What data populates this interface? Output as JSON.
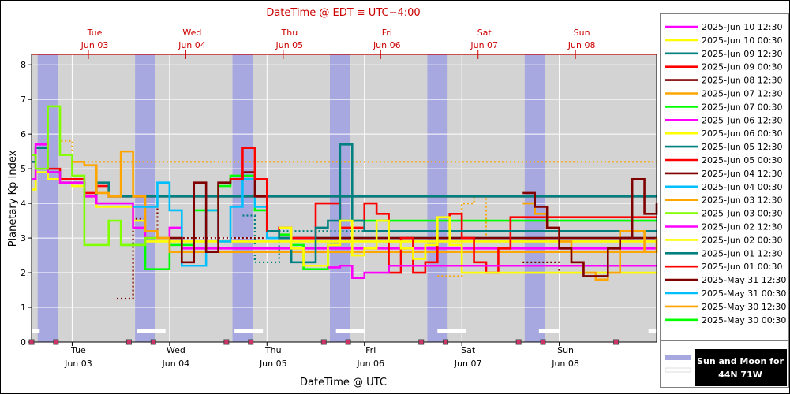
{
  "chart_data": {
    "type": "line",
    "title": "DateTime @ EDT ≡ UTC−4:00",
    "xlabel": "DateTime @ UTC",
    "ylabel": "Planetary Kp Index",
    "ylim": [
      0,
      8.3
    ],
    "xlim": [
      "2025-06-02 14:00",
      "2025-06-09 00:00"
    ],
    "y_ticks": [
      0,
      1,
      2,
      3,
      4,
      5,
      6,
      7,
      8
    ],
    "x_ticks_bottom": [
      {
        "day": "Tue",
        "date": "Jun 03",
        "at": "2025-06-03 00:00"
      },
      {
        "day": "Wed",
        "date": "Jun 04",
        "at": "2025-06-04 00:00"
      },
      {
        "day": "Thu",
        "date": "Jun 05",
        "at": "2025-06-05 00:00"
      },
      {
        "day": "Fri",
        "date": "Jun 06",
        "at": "2025-06-06 00:00"
      },
      {
        "day": "Sat",
        "date": "Jun 07",
        "at": "2025-06-07 00:00"
      },
      {
        "day": "Sun",
        "date": "Jun 08",
        "at": "2025-06-08 00:00"
      }
    ],
    "x_ticks_top": [
      {
        "day": "Tue",
        "date": "Jun 03",
        "at": "2025-06-03 04:00"
      },
      {
        "day": "Wed",
        "date": "Jun 04",
        "at": "2025-06-04 04:00"
      },
      {
        "day": "Thu",
        "date": "Jun 05",
        "at": "2025-06-05 04:00"
      },
      {
        "day": "Fri",
        "date": "Jun 06",
        "at": "2025-06-06 04:00"
      },
      {
        "day": "Sat",
        "date": "Jun 07",
        "at": "2025-06-07 04:00"
      },
      {
        "day": "Sun",
        "date": "Jun 08",
        "at": "2025-06-08 04:00"
      }
    ],
    "grid": true,
    "legend_position": "right",
    "sun_moon_label": "Sun and Moon for\n44N 71W",
    "sun_bands": [
      {
        "start": "2025-06-02 15:30",
        "end": "2025-06-02 20:30"
      },
      {
        "start": "2025-06-03 15:30",
        "end": "2025-06-03 20:30"
      },
      {
        "start": "2025-06-04 15:30",
        "end": "2025-06-04 20:30"
      },
      {
        "start": "2025-06-05 15:30",
        "end": "2025-06-05 20:30"
      },
      {
        "start": "2025-06-06 15:30",
        "end": "2025-06-06 20:30"
      },
      {
        "start": "2025-06-07 15:30",
        "end": "2025-06-07 20:30"
      }
    ],
    "moon_bars": [
      {
        "start": "2025-06-02 14:00",
        "end": "2025-06-02 16:00"
      },
      {
        "start": "2025-06-03 16:00",
        "end": "2025-06-03 23:00"
      },
      {
        "start": "2025-06-04 16:00",
        "end": "2025-06-04 23:00"
      },
      {
        "start": "2025-06-05 17:00",
        "end": "2025-06-06 00:00"
      },
      {
        "start": "2025-06-06 18:00",
        "end": "2025-06-07 01:00"
      },
      {
        "start": "2025-06-07 19:00",
        "end": "2025-06-08 00:00"
      },
      {
        "start": "2025-06-08 22:00",
        "end": "2025-06-09 00:00"
      }
    ],
    "sun_markers": [
      "2025-06-02 14:00",
      "2025-06-02 20:00",
      "2025-06-03 14:00",
      "2025-06-03 20:00",
      "2025-06-04 14:00",
      "2025-06-04 20:00",
      "2025-06-05 14:00",
      "2025-06-05 20:00",
      "2025-06-06 14:00",
      "2025-06-06 20:00",
      "2025-06-07 14:00",
      "2025-06-07 20:00",
      "2025-06-08 14:00"
    ],
    "series": [
      {
        "name": "2025-Jun 10 12:30",
        "color": "#ff00ff",
        "dash": false
      },
      {
        "name": "2025-Jun 10 00:30",
        "color": "#ffff00",
        "dash": false
      },
      {
        "name": "2025-Jun 09 12:30",
        "color": "#008080",
        "dash": false
      },
      {
        "name": "2025-Jun 09 00:30",
        "color": "#ff0000",
        "dash": false
      },
      {
        "name": "2025-Jun 08 12:30",
        "color": "#800000",
        "dash": false,
        "x": [
          "2025-06-07 15:00",
          "2025-06-07 18:00",
          "2025-06-07 21:00",
          "2025-06-08 00:00",
          "2025-06-08 03:00",
          "2025-06-08 06:00",
          "2025-06-08 09:00",
          "2025-06-08 12:00",
          "2025-06-08 15:00",
          "2025-06-08 18:00",
          "2025-06-08 21:00",
          "2025-06-09 00:00"
        ],
        "y": [
          4.3,
          3.9,
          3.3,
          2.7,
          2.3,
          1.9,
          1.9,
          2.7,
          3.0,
          4.7,
          3.7,
          4.0
        ]
      },
      {
        "name": "2025-Jun 07 12:30",
        "color": "#ffa500",
        "dash": false,
        "x": [
          "2025-06-07 15:00",
          "2025-06-07 18:00",
          "2025-06-07 21:00",
          "2025-06-08 00:00",
          "2025-06-08 03:00",
          "2025-06-08 06:00",
          "2025-06-08 09:00",
          "2025-06-08 12:00",
          "2025-06-08 15:00",
          "2025-06-08 18:00",
          "2025-06-08 21:00",
          "2025-06-09 00:00"
        ],
        "y": [
          4.0,
          3.7,
          3.3,
          2.9,
          2.3,
          2.0,
          1.8,
          2.0,
          3.2,
          3.2,
          2.6,
          3.0
        ]
      },
      {
        "name": "2025-Jun 07 00:30",
        "color": "#00ff00",
        "dash": false
      },
      {
        "name": "2025-Jun 06 12:30",
        "color": "#ff00ff",
        "dash": false,
        "x": [
          "2025-06-05 15:00",
          "2025-06-05 18:00",
          "2025-06-05 21:00",
          "2025-06-06 00:00",
          "2025-06-06 03:00",
          "2025-06-06 06:00",
          "2025-06-06 09:00"
        ],
        "y": [
          2.15,
          2.2,
          1.85,
          2.0,
          2.0,
          2.2,
          2.2
        ]
      },
      {
        "name": "2025-Jun 06 00:30",
        "color": "#ffff00",
        "dash": false,
        "x": [
          "2025-06-05 03:00",
          "2025-06-05 06:00",
          "2025-06-05 09:00",
          "2025-06-05 12:00",
          "2025-06-05 15:00",
          "2025-06-05 18:00",
          "2025-06-05 21:00",
          "2025-06-06 00:00",
          "2025-06-06 03:00",
          "2025-06-06 06:00",
          "2025-06-06 09:00",
          "2025-06-06 12:00",
          "2025-06-06 15:00",
          "2025-06-06 18:00",
          "2025-06-06 21:00",
          "2025-06-07 00:00"
        ],
        "y": [
          3.3,
          2.7,
          2.2,
          2.2,
          2.8,
          3.5,
          2.5,
          2.7,
          3.5,
          2.9,
          2.7,
          2.4,
          2.8,
          3.6,
          2.8,
          2.0
        ]
      },
      {
        "name": "2025-Jun 05 12:30",
        "color": "#008080",
        "dash": false,
        "x": [
          "2025-06-05 00:00",
          "2025-06-05 03:00",
          "2025-06-05 06:00",
          "2025-06-05 09:00",
          "2025-06-05 12:00",
          "2025-06-05 15:00",
          "2025-06-05 18:00",
          "2025-06-05 21:00",
          "2025-06-06 00:00"
        ],
        "y": [
          3.2,
          3.0,
          2.3,
          2.3,
          3.3,
          3.5,
          5.7,
          3.5,
          3.2
        ]
      },
      {
        "name": "2025-Jun 05 00:30",
        "color": "#ff0000",
        "dash": false,
        "x": [
          "2025-06-04 15:00",
          "2025-06-04 18:00",
          "2025-06-04 21:00",
          "2025-06-05 00:00",
          "2025-06-05 03:00",
          "2025-06-05 06:00",
          "2025-06-05 09:00",
          "2025-06-05 12:00",
          "2025-06-05 15:00",
          "2025-06-05 18:00",
          "2025-06-05 21:00",
          "2025-06-06 00:00",
          "2025-06-06 03:00",
          "2025-06-06 06:00",
          "2025-06-06 09:00",
          "2025-06-06 12:00",
          "2025-06-06 15:00",
          "2025-06-06 18:00",
          "2025-06-06 21:00",
          "2025-06-07 00:00",
          "2025-06-07 03:00",
          "2025-06-07 06:00",
          "2025-06-07 09:00",
          "2025-06-07 12:00"
        ],
        "y": [
          4.7,
          5.6,
          4.7,
          3.2,
          3.3,
          3.0,
          3.0,
          4.0,
          4.0,
          3.3,
          3.3,
          4.0,
          3.7,
          2.0,
          3.0,
          2.0,
          2.3,
          3.2,
          3.7,
          3.0,
          2.3,
          2.0,
          2.7,
          3.6
        ]
      },
      {
        "name": "2025-Jun 04 12:30",
        "color": "#800000",
        "dash": false,
        "x": [
          "2025-06-04 00:00",
          "2025-06-04 03:00",
          "2025-06-04 06:00",
          "2025-06-04 09:00",
          "2025-06-04 12:00",
          "2025-06-04 15:00",
          "2025-06-04 18:00",
          "2025-06-04 21:00",
          "2025-06-05 00:00",
          "2025-06-05 03:00"
        ],
        "y": [
          3.0,
          2.3,
          4.6,
          2.6,
          4.6,
          4.7,
          4.9,
          4.2,
          3.2,
          3.0
        ]
      },
      {
        "name": "2025-Jun 04 00:30",
        "color": "#00bfff",
        "dash": false,
        "x": [
          "2025-06-03 15:00",
          "2025-06-03 18:00",
          "2025-06-03 21:00",
          "2025-06-04 00:00",
          "2025-06-04 03:00",
          "2025-06-04 06:00",
          "2025-06-04 09:00",
          "2025-06-04 12:00",
          "2025-06-04 15:00",
          "2025-06-04 18:00",
          "2025-06-04 21:00",
          "2025-06-05 00:00"
        ],
        "y": [
          3.9,
          3.9,
          4.6,
          3.8,
          2.2,
          2.2,
          3.8,
          2.9,
          3.9,
          4.7,
          3.9,
          3.0
        ]
      },
      {
        "name": "2025-Jun 03 12:30",
        "color": "#ffa500",
        "dash": false,
        "x": [
          "2025-06-03 00:00",
          "2025-06-03 03:00",
          "2025-06-03 06:00",
          "2025-06-03 09:00",
          "2025-06-03 12:00",
          "2025-06-03 15:00",
          "2025-06-03 18:00",
          "2025-06-03 21:00",
          "2025-06-04 00:00"
        ],
        "y": [
          5.2,
          5.1,
          4.3,
          4.2,
          5.5,
          4.2,
          3.2,
          3.0,
          2.6
        ]
      },
      {
        "name": "2025-Jun 03 00:30",
        "color": "#80ff00",
        "dash": false,
        "x": [
          "2025-06-02 14:00",
          "2025-06-02 15:00",
          "2025-06-02 18:00",
          "2025-06-02 21:00",
          "2025-06-03 00:00",
          "2025-06-03 03:00",
          "2025-06-03 06:00",
          "2025-06-03 09:00",
          "2025-06-03 12:00",
          "2025-06-03 15:00",
          "2025-06-03 18:00",
          "2025-06-03 21:00",
          "2025-06-04 00:00"
        ],
        "y": [
          5.4,
          5.0,
          6.8,
          5.4,
          4.8,
          2.8,
          2.8,
          3.5,
          2.8,
          2.8,
          3.0,
          3.0,
          2.6
        ]
      },
      {
        "name": "2025-Jun 02 12:30",
        "color": "#ff00ff",
        "dash": false,
        "x": [
          "2025-06-02 14:00",
          "2025-06-02 15:00",
          "2025-06-02 18:00",
          "2025-06-02 21:00",
          "2025-06-03 00:00",
          "2025-06-03 03:00",
          "2025-06-03 06:00",
          "2025-06-03 09:00",
          "2025-06-03 12:00",
          "2025-06-03 15:00",
          "2025-06-03 18:00",
          "2025-06-03 21:00",
          "2025-06-04 00:00",
          "2025-06-04 03:00"
        ],
        "y": [
          4.7,
          5.7,
          4.9,
          4.6,
          4.6,
          4.2,
          4.0,
          4.0,
          4.0,
          3.3,
          3.0,
          3.0,
          3.3,
          2.7
        ]
      },
      {
        "name": "2025-Jun 02 00:30",
        "color": "#ffff00",
        "dash": false,
        "x": [
          "2025-06-02 14:00",
          "2025-06-02 15:00",
          "2025-06-02 18:00",
          "2025-06-02 21:00",
          "2025-06-03 00:00",
          "2025-06-03 03:00",
          "2025-06-03 06:00",
          "2025-06-03 09:00",
          "2025-06-03 12:00",
          "2025-06-03 15:00",
          "2025-06-03 18:00",
          "2025-06-03 21:00",
          "2025-06-04 00:00"
        ],
        "y": [
          4.4,
          4.9,
          4.7,
          4.6,
          4.5,
          4.2,
          3.9,
          3.9,
          3.9,
          3.5,
          2.9,
          2.9,
          2.9
        ]
      },
      {
        "name": "2025-Jun 01 12:30",
        "color": "#008080",
        "dash": false,
        "x": [
          "2025-06-02 14:00",
          "2025-06-02 15:00",
          "2025-06-02 18:00",
          "2025-06-02 21:00",
          "2025-06-03 00:00",
          "2025-06-03 03:00",
          "2025-06-03 06:00",
          "2025-06-03 09:00",
          "2025-06-03 12:00"
        ],
        "y": [
          5.2,
          5.6,
          4.9,
          4.6,
          4.6,
          4.2,
          4.6,
          4.2,
          4.2
        ]
      },
      {
        "name": "2025-Jun 01 00:30",
        "color": "#ff0000",
        "dash": false,
        "x": [
          "2025-06-02 14:00",
          "2025-06-02 15:00",
          "2025-06-02 18:00",
          "2025-06-02 21:00",
          "2025-06-03 00:00",
          "2025-06-03 03:00",
          "2025-06-03 06:00",
          "2025-06-03 09:00",
          "2025-06-03 12:00",
          "2025-06-03 15:00"
        ],
        "y": [
          5.2,
          5.6,
          5.0,
          4.7,
          4.7,
          4.3,
          4.5,
          4.2,
          4.2,
          4.2
        ]
      },
      {
        "name": "2025-May 31 12:30",
        "color": "#800000",
        "dash": false
      },
      {
        "name": "2025-May 31 00:30",
        "color": "#00bfff",
        "dash": false
      },
      {
        "name": "2025-May 30 12:30",
        "color": "#ffa500",
        "dash": false
      },
      {
        "name": "2025-May 30 00:30",
        "color": "#00ff00",
        "dash": false,
        "x": [
          "2025-06-03 12:00",
          "2025-06-03 15:00",
          "2025-06-03 18:00",
          "2025-06-03 21:00",
          "2025-06-04 00:00",
          "2025-06-04 03:00",
          "2025-06-04 06:00",
          "2025-06-04 09:00",
          "2025-06-04 12:00",
          "2025-06-04 15:00",
          "2025-06-04 18:00",
          "2025-06-04 21:00",
          "2025-06-05 00:00",
          "2025-06-05 03:00",
          "2025-06-05 06:00",
          "2025-06-05 09:00",
          "2025-06-05 12:00",
          "2025-06-05 15:00",
          "2025-06-05 18:00"
        ],
        "y": [
          2.8,
          2.8,
          2.1,
          2.1,
          2.8,
          2.8,
          3.8,
          3.8,
          4.5,
          4.8,
          4.8,
          3.8,
          3.2,
          3.1,
          2.8,
          2.1,
          2.1,
          2.8,
          3.5
        ]
      }
    ],
    "forecast_series": [
      {
        "color": "#ffa500",
        "dash": true,
        "x": [
          "2025-06-02 17:00",
          "2025-06-02 18:00",
          "2025-06-02 21:00",
          "2025-06-03 00:00",
          "2025-06-03 03:00"
        ],
        "y": [
          5.0,
          6.8,
          5.8,
          5.2,
          5.2
        ]
      },
      {
        "color": "#800000",
        "dash": true,
        "x": [
          "2025-06-03 11:00",
          "2025-06-03 14:00",
          "2025-06-03 15:00",
          "2025-06-03 18:00",
          "2025-06-03 21:00"
        ],
        "y": [
          1.25,
          1.25,
          3.55,
          3.9,
          3.0
        ]
      },
      {
        "color": "#008080",
        "dash": true,
        "x": [
          "2025-06-04 18:00",
          "2025-06-04 21:00",
          "2025-06-05 00:00",
          "2025-06-05 03:00"
        ],
        "y": [
          3.65,
          2.3,
          2.3,
          3.2
        ]
      },
      {
        "color": "#ffa500",
        "dash": true,
        "x": [
          "2025-06-06 18:00",
          "2025-06-06 21:00",
          "2025-06-07 00:00",
          "2025-06-07 03:00",
          "2025-06-07 06:00"
        ],
        "y": [
          1.9,
          1.9,
          4.0,
          4.2,
          2.9
        ]
      },
      {
        "color": "#800000",
        "dash": true,
        "x": [
          "2025-06-07 15:00",
          "2025-06-07 21:00",
          "2025-06-08 00:00",
          "2025-06-08 03:00"
        ],
        "y": [
          2.3,
          2.3,
          2.0,
          2.0
        ]
      }
    ]
  }
}
